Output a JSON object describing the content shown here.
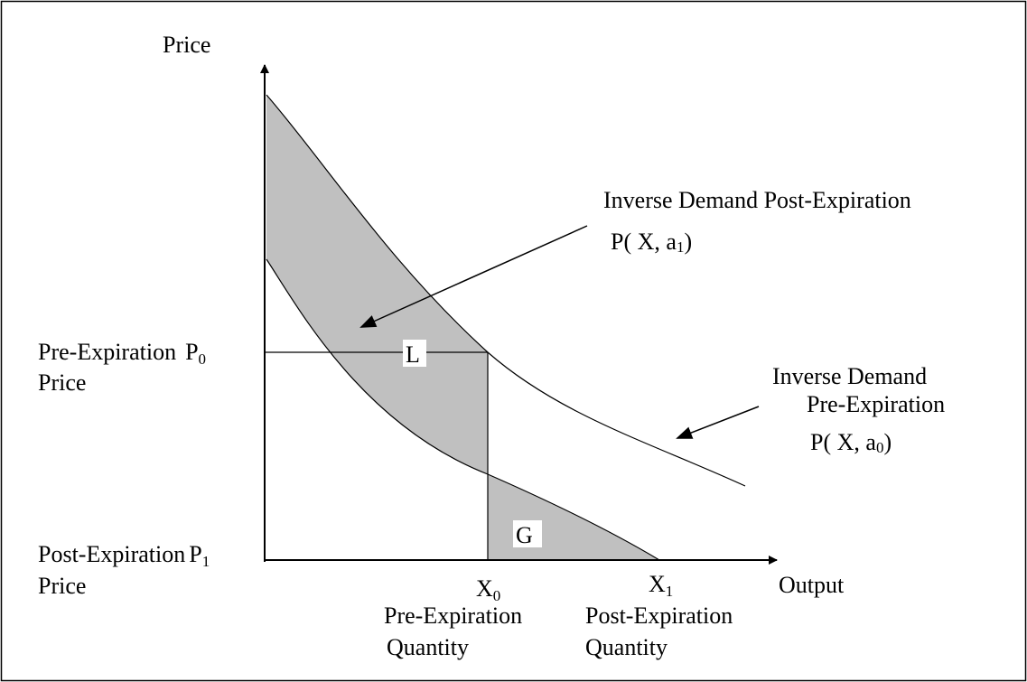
{
  "axes": {
    "y_label": "Price",
    "x_label": "Output"
  },
  "post_demand": {
    "title": "Inverse Demand Post-Expiration",
    "formula": "P( X, a",
    "sub": "1",
    "close": ")"
  },
  "pre_demand": {
    "title_1": "Inverse Demand",
    "title_2": "Pre-Expiration",
    "formula": "P( X, a",
    "sub": "0",
    "close": ")"
  },
  "pre_price": {
    "line_1": "Pre-Expiration",
    "symbol": "P",
    "sub": "0",
    "line_2": "Price"
  },
  "post_price": {
    "line_1": "Post-Expiration",
    "symbol": "P",
    "sub": "1",
    "line_2": "Price"
  },
  "pre_quantity": {
    "symbol": "X",
    "sub": "0",
    "line_1": "Pre-Expiration",
    "line_2": "Quantity"
  },
  "post_quantity": {
    "symbol": "X",
    "sub": "1",
    "line_1": "Post-Expiration",
    "line_2": "Quantity"
  },
  "areas": {
    "loss": "L",
    "gain": "G"
  }
}
